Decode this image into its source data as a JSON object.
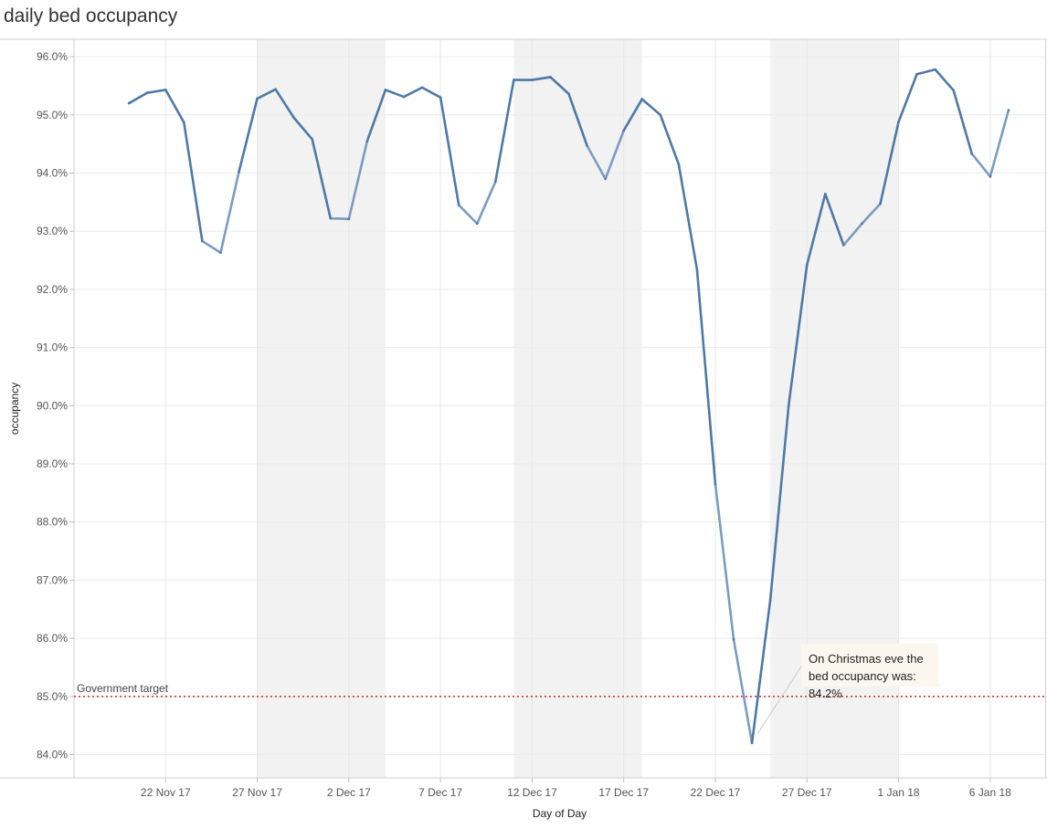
{
  "chart_data": {
    "type": "line",
    "title": "daily bed occupancy",
    "xlabel": "Day of Day",
    "ylabel": "occupancy",
    "ylim": [
      83.6,
      96.3
    ],
    "y_ticks": [
      "96.0%",
      "95.0%",
      "94.0%",
      "93.0%",
      "92.0%",
      "91.0%",
      "90.0%",
      "89.0%",
      "88.0%",
      "87.0%",
      "86.0%",
      "85.0%",
      "84.0%"
    ],
    "y_tick_values": [
      96,
      95,
      94,
      93,
      92,
      91,
      90,
      89,
      88,
      87,
      86,
      85,
      84
    ],
    "x_ticks": [
      "22 Nov 17",
      "27 Nov 17",
      "2 Dec 17",
      "7 Dec 17",
      "12 Dec 17",
      "17 Dec 17",
      "22 Dec 17",
      "27 Dec 17",
      "1 Jan 18",
      "6 Jan 18"
    ],
    "x_tick_dates": [
      "2017-11-22",
      "2017-11-27",
      "2017-12-02",
      "2017-12-07",
      "2017-12-12",
      "2017-12-17",
      "2017-12-22",
      "2017-12-27",
      "2018-01-01",
      "2018-01-06"
    ],
    "x_range": [
      "2017-11-17",
      "2018-01-09"
    ],
    "series": [
      {
        "x": [
          "2017-11-20",
          "2017-11-21",
          "2017-11-22",
          "2017-11-23",
          "2017-11-24",
          "2017-11-25",
          "2017-11-26",
          "2017-11-27",
          "2017-11-28",
          "2017-11-29",
          "2017-11-30",
          "2017-12-01",
          "2017-12-02",
          "2017-12-03",
          "2017-12-04",
          "2017-12-05",
          "2017-12-06",
          "2017-12-07",
          "2017-12-08",
          "2017-12-09",
          "2017-12-10",
          "2017-12-11",
          "2017-12-12",
          "2017-12-13",
          "2017-12-14",
          "2017-12-15",
          "2017-12-16",
          "2017-12-17",
          "2017-12-18",
          "2017-12-19",
          "2017-12-20",
          "2017-12-21",
          "2017-12-22",
          "2017-12-23",
          "2017-12-24",
          "2017-12-25",
          "2017-12-26",
          "2017-12-27",
          "2017-12-28",
          "2017-12-29",
          "2017-12-30",
          "2017-12-31",
          "2018-01-01",
          "2018-01-02",
          "2018-01-03",
          "2018-01-04",
          "2018-01-05",
          "2018-01-06",
          "2018-01-07"
        ],
        "values": [
          95.2,
          95.38,
          95.43,
          94.87,
          92.83,
          92.63,
          94.02,
          95.28,
          95.44,
          94.95,
          94.58,
          93.22,
          93.21,
          94.55,
          95.43,
          95.31,
          95.47,
          95.3,
          93.45,
          93.13,
          93.85,
          95.6,
          95.6,
          95.65,
          95.36,
          94.47,
          93.9,
          94.73,
          95.27,
          95.0,
          94.15,
          92.34,
          88.65,
          85.98,
          84.2,
          86.66,
          90.0,
          92.42,
          93.64,
          92.76,
          93.13,
          93.47,
          94.88,
          95.7,
          95.78,
          95.42,
          94.33,
          93.94,
          95.08
        ]
      }
    ],
    "weekend_dates": [
      "2017-11-25",
      "2017-11-26",
      "2017-12-02",
      "2017-12-03",
      "2017-12-09",
      "2017-12-10",
      "2017-12-16",
      "2017-12-17",
      "2017-12-23",
      "2017-12-24",
      "2017-12-30",
      "2017-12-31",
      "2018-01-06",
      "2018-01-07"
    ],
    "shaded_bands": [
      [
        "2017-11-27",
        "2017-12-04"
      ],
      [
        "2017-12-11",
        "2017-12-18"
      ],
      [
        "2017-12-25",
        "2018-01-01"
      ]
    ],
    "reference_line": {
      "value": 85.0,
      "label": "Government target",
      "color": "#d13b3b"
    },
    "annotation": {
      "text": "On Christmas eve the bed occupancy was: 84.2%",
      "date": "2017-12-24",
      "value": 84.2
    },
    "colors": {
      "line": "#4e79a7",
      "weekend_line": "#7b9cc1",
      "band": "#f2f2f2"
    },
    "grid": true,
    "legend": "none"
  }
}
